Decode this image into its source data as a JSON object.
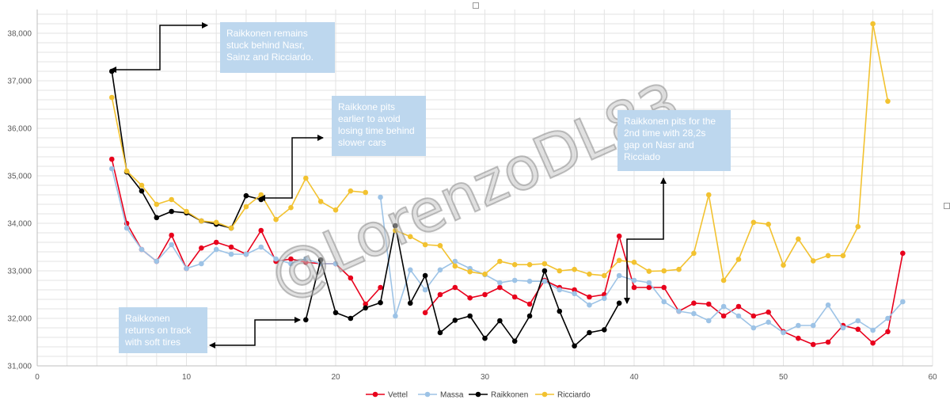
{
  "chart_data": {
    "type": "line",
    "xlim": [
      0,
      60
    ],
    "ylim": [
      31000,
      38500
    ],
    "x_ticks": [
      "0",
      "10",
      "20",
      "30",
      "40",
      "50",
      "60"
    ],
    "y_ticks": [
      "31,000",
      "32,000",
      "33,000",
      "34,000",
      "35,000",
      "36,000",
      "37,000",
      "38,000"
    ],
    "grid": "vertical and horizontal",
    "legend": "bottom",
    "series": [
      {
        "name": "Vettel",
        "color": "#e8001c",
        "x": [
          5,
          6,
          7,
          8,
          9,
          10,
          11,
          12,
          13,
          14,
          15,
          16,
          17,
          18,
          19,
          20,
          21,
          22,
          23,
          24,
          25,
          26,
          27,
          28,
          29,
          30,
          31,
          32,
          33,
          34,
          35,
          36,
          37,
          38,
          39,
          40,
          41,
          42,
          43,
          44,
          45,
          46,
          47,
          48,
          49,
          50,
          51,
          52,
          53,
          54,
          55,
          56,
          57,
          58
        ],
        "y": [
          35350,
          34000,
          33450,
          33200,
          33750,
          33050,
          33480,
          33600,
          33500,
          33350,
          33850,
          33200,
          33250,
          33180,
          33150,
          33150,
          32850,
          32300,
          32650,
          null,
          null,
          32120,
          32500,
          32650,
          32430,
          32500,
          32650,
          32450,
          32300,
          32800,
          32650,
          32600,
          32450,
          32500,
          33730,
          32650,
          32650,
          32650,
          32150,
          32320,
          32300,
          32050,
          32250,
          32050,
          32130,
          31720,
          31580,
          31450,
          31500,
          31850,
          31770,
          31480,
          31720,
          33370
        ]
      },
      {
        "name": "Massa",
        "color": "#9dc3e6",
        "x": [
          5,
          6,
          7,
          8,
          9,
          10,
          11,
          12,
          13,
          14,
          15,
          16,
          17,
          18,
          19,
          20,
          21,
          22,
          23,
          24,
          25,
          26,
          27,
          28,
          29,
          30,
          31,
          32,
          33,
          34,
          35,
          36,
          37,
          38,
          39,
          40,
          41,
          42,
          43,
          44,
          45,
          46,
          47,
          48,
          49,
          50,
          51,
          52,
          53,
          54,
          55,
          56,
          57,
          58
        ],
        "y": [
          35150,
          33900,
          33450,
          33200,
          33550,
          33050,
          33150,
          33450,
          33350,
          33350,
          33500,
          33250,
          33150,
          33250,
          33150,
          33150,
          null,
          null,
          34550,
          32050,
          33020,
          32600,
          33020,
          33200,
          33050,
          32920,
          32750,
          32800,
          32780,
          32780,
          32600,
          32520,
          32280,
          32420,
          32900,
          32800,
          32750,
          32350,
          32150,
          32100,
          31950,
          32250,
          32050,
          31800,
          31920,
          31700,
          31850,
          31850,
          32280,
          31800,
          31950,
          31750,
          32000,
          32350
        ]
      },
      {
        "name": "Raikkonen",
        "color": "#000000",
        "x": [
          5,
          6,
          7,
          8,
          9,
          10,
          11,
          12,
          13,
          14,
          15,
          16,
          17,
          18,
          19,
          20,
          21,
          22,
          23,
          24,
          25,
          26,
          27,
          28,
          29,
          30,
          31,
          32,
          33,
          34,
          35,
          36,
          37,
          38,
          39
        ],
        "y": [
          37200,
          35080,
          34680,
          34120,
          34250,
          34220,
          34050,
          33980,
          33900,
          34580,
          34500,
          null,
          null,
          31970,
          33230,
          32120,
          32000,
          32220,
          32330,
          33950,
          32320,
          32900,
          31700,
          31960,
          32050,
          31580,
          31950,
          31520,
          32050,
          33000,
          32150,
          31420,
          31700,
          31760,
          32320
        ]
      },
      {
        "name": "Ricciardo",
        "color": "#f2c230",
        "x": [
          5,
          6,
          7,
          8,
          9,
          10,
          11,
          12,
          13,
          14,
          15,
          16,
          17,
          18,
          19,
          20,
          21,
          22,
          23,
          24,
          25,
          26,
          27,
          28,
          29,
          30,
          31,
          32,
          33,
          34,
          35,
          36,
          37,
          38,
          39,
          40,
          41,
          42,
          43,
          44,
          45,
          46,
          47,
          48,
          49,
          50,
          51,
          52,
          53,
          54,
          55,
          56,
          57
        ],
        "y": [
          36650,
          35100,
          34800,
          34400,
          34500,
          34250,
          34050,
          34020,
          33900,
          34350,
          34600,
          34080,
          34330,
          34950,
          34460,
          34280,
          34680,
          34650,
          null,
          33850,
          33720,
          33550,
          33530,
          33100,
          32980,
          32930,
          33200,
          33130,
          33130,
          33150,
          33000,
          33030,
          32930,
          32900,
          33220,
          33180,
          32990,
          33000,
          33030,
          33370,
          34600,
          32800,
          33240,
          34020,
          33980,
          33120,
          33670,
          33210,
          33320,
          33320,
          33930,
          38200,
          36570
        ]
      }
    ],
    "annotations": [
      "Raikkonen remains stuck behind Nasr, Sainz and Ricciardo.",
      "Raikkone pits earlier to avoid losing time behind slower cars",
      "Raikkonen pits for the 2nd time with 28,2s gap on Nasr and Ricciado",
      "Raikkonen returns on track with soft tires"
    ]
  },
  "annotation_lines": [
    [
      "Raikkonen remains",
      "stuck behind Nasr,",
      "Sainz and Ricciardo."
    ],
    [
      "Raikkone pits",
      "earlier to avoid",
      "losing time behind",
      "slower cars"
    ],
    [
      "Raikkonen pits for the",
      "2nd time with 28,2s",
      "gap on Nasr and",
      "Ricciado"
    ],
    [
      "Raikkonen",
      "returns on track",
      "with soft tires"
    ]
  ],
  "watermark": "@LorenzoDL83"
}
